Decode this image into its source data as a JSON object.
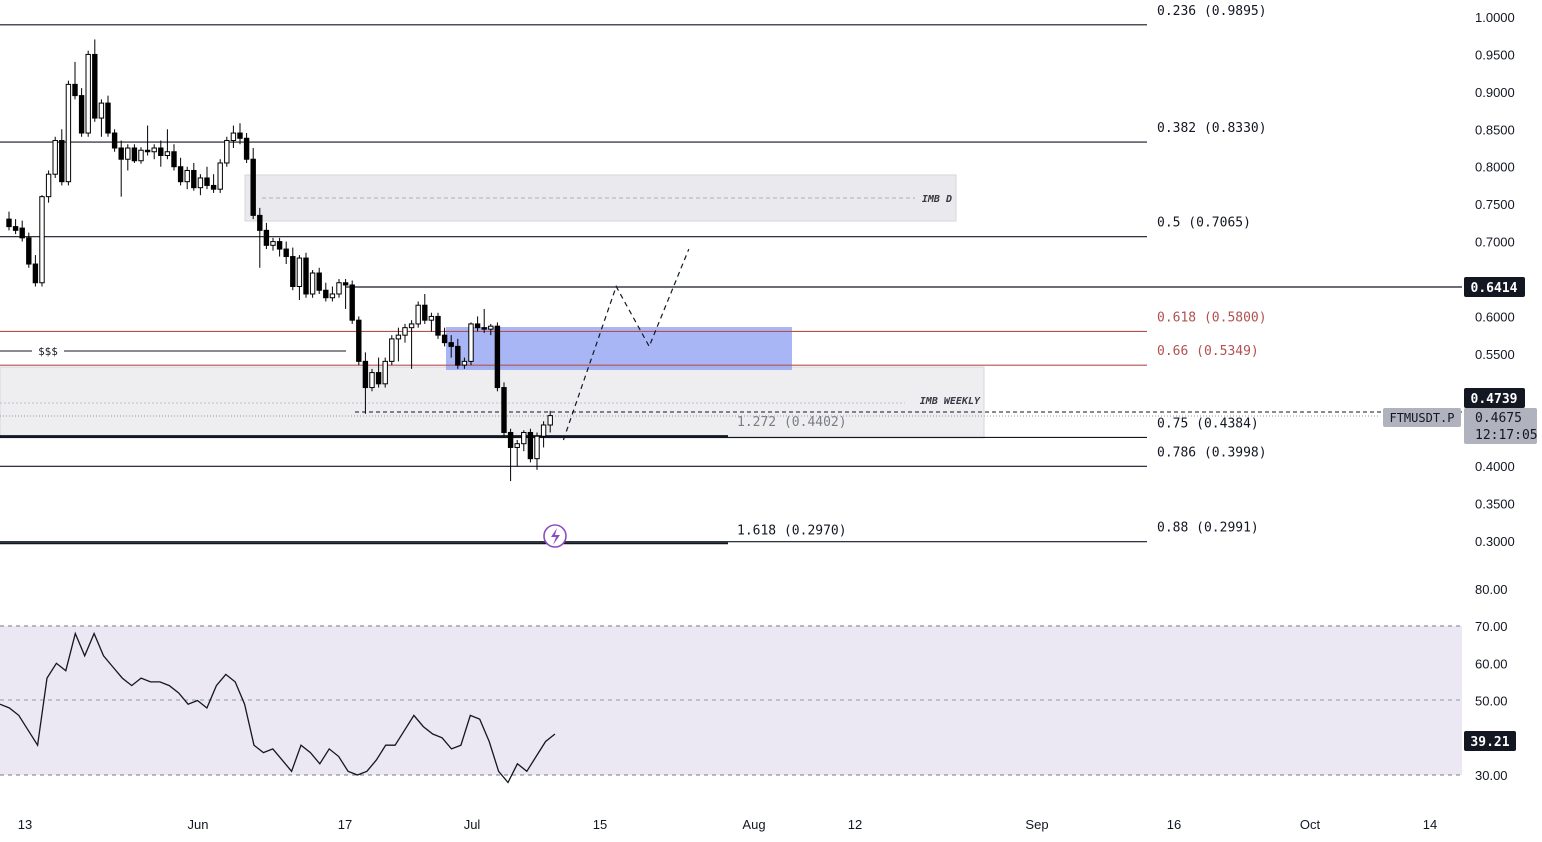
{
  "symbol": "FTMUSDT.P",
  "colors": {
    "bull_fill": "#ffffff",
    "bear_fill": "#000000",
    "candle_stroke": "#000000",
    "fib_black": "#131722",
    "fib_red": "#b2504f",
    "imbalance_gray": "#e6e6ec",
    "blue_zone": "#8c9ef2",
    "rsi_band": "#ebe7f3",
    "rsi_line": "#131722",
    "label_bg": "#131722",
    "label_text": "#ffffff",
    "symbol_tag_bg": "#b0b3bd",
    "marker": "#8a4fbf"
  },
  "price_axis": {
    "labels": [
      "1.0000",
      "0.9500",
      "0.9000",
      "0.8500",
      "0.8000",
      "0.7500",
      "0.7000",
      "0.6000",
      "0.5500",
      "0.4000",
      "0.3500",
      "0.3000"
    ]
  },
  "rsi_axis": {
    "labels": [
      "80.00",
      "70.00",
      "60.00",
      "50.00",
      "30.00"
    ]
  },
  "time_axis": {
    "labels": [
      "13",
      "Jun",
      "17",
      "Jul",
      "15",
      "Aug",
      "12",
      "Sep",
      "16",
      "Oct",
      "14"
    ]
  },
  "badges": {
    "level_price": "0.6414",
    "high_price": "0.4739",
    "last_price": "0.4675",
    "countdown": "12:17:05",
    "rsi_value": "39.21"
  },
  "fib_levels": [
    {
      "label": "0.236 (0.9895)",
      "price": 0.9895,
      "color": "black"
    },
    {
      "label": "0.382 (0.8330)",
      "price": 0.833,
      "color": "black"
    },
    {
      "label": "0.5 (0.7065)",
      "price": 0.7065,
      "color": "black"
    },
    {
      "label": "0.618 (0.5800)",
      "price": 0.58,
      "color": "red"
    },
    {
      "label": "0.66 (0.5349)",
      "price": 0.5349,
      "color": "red"
    },
    {
      "label": "0.75 (0.4384)",
      "price": 0.4384,
      "color": "black"
    },
    {
      "label": "0.786 (0.3998)",
      "price": 0.3998,
      "color": "black"
    },
    {
      "label": "0.88 (0.2991)",
      "price": 0.2991,
      "color": "black"
    }
  ],
  "extension_levels": [
    {
      "label": "1.272 (0.4402)",
      "price": 0.4402
    },
    {
      "label": "1.618 (0.2970)",
      "price": 0.297
    }
  ],
  "zones": {
    "imb_daily": "IMB D",
    "imb_weekly": "IMB WEEKLY",
    "liquidity": "$$$"
  },
  "chart_data": {
    "type": "candlestick",
    "symbol": "FTMUSDT.P",
    "price_range": [
      0.3,
      1.0
    ],
    "rsi_range": [
      30,
      70
    ],
    "candles": [
      {
        "o": 0.73,
        "h": 0.74,
        "l": 0.715,
        "c": 0.72
      },
      {
        "o": 0.72,
        "h": 0.73,
        "l": 0.71,
        "c": 0.715
      },
      {
        "o": 0.718,
        "h": 0.728,
        "l": 0.7,
        "c": 0.705
      },
      {
        "o": 0.705,
        "h": 0.712,
        "l": 0.665,
        "c": 0.67
      },
      {
        "o": 0.67,
        "h": 0.682,
        "l": 0.64,
        "c": 0.645
      },
      {
        "o": 0.645,
        "h": 0.762,
        "l": 0.64,
        "c": 0.76
      },
      {
        "o": 0.76,
        "h": 0.795,
        "l": 0.752,
        "c": 0.79
      },
      {
        "o": 0.79,
        "h": 0.84,
        "l": 0.785,
        "c": 0.835
      },
      {
        "o": 0.835,
        "h": 0.85,
        "l": 0.775,
        "c": 0.78
      },
      {
        "o": 0.78,
        "h": 0.915,
        "l": 0.775,
        "c": 0.91
      },
      {
        "o": 0.91,
        "h": 0.94,
        "l": 0.89,
        "c": 0.895
      },
      {
        "o": 0.895,
        "h": 0.905,
        "l": 0.84,
        "c": 0.845
      },
      {
        "o": 0.845,
        "h": 0.955,
        "l": 0.84,
        "c": 0.95
      },
      {
        "o": 0.95,
        "h": 0.97,
        "l": 0.86,
        "c": 0.865
      },
      {
        "o": 0.865,
        "h": 0.89,
        "l": 0.84,
        "c": 0.885
      },
      {
        "o": 0.885,
        "h": 0.895,
        "l": 0.84,
        "c": 0.845
      },
      {
        "o": 0.845,
        "h": 0.85,
        "l": 0.82,
        "c": 0.825
      },
      {
        "o": 0.825,
        "h": 0.835,
        "l": 0.76,
        "c": 0.81
      },
      {
        "o": 0.81,
        "h": 0.83,
        "l": 0.795,
        "c": 0.825
      },
      {
        "o": 0.825,
        "h": 0.83,
        "l": 0.805,
        "c": 0.808
      },
      {
        "o": 0.808,
        "h": 0.826,
        "l": 0.804,
        "c": 0.822
      },
      {
        "o": 0.822,
        "h": 0.855,
        "l": 0.815,
        "c": 0.82
      },
      {
        "o": 0.82,
        "h": 0.83,
        "l": 0.81,
        "c": 0.825
      },
      {
        "o": 0.825,
        "h": 0.835,
        "l": 0.8,
        "c": 0.815
      },
      {
        "o": 0.815,
        "h": 0.85,
        "l": 0.81,
        "c": 0.82
      },
      {
        "o": 0.82,
        "h": 0.83,
        "l": 0.795,
        "c": 0.8
      },
      {
        "o": 0.8,
        "h": 0.812,
        "l": 0.775,
        "c": 0.78
      },
      {
        "o": 0.78,
        "h": 0.8,
        "l": 0.77,
        "c": 0.795
      },
      {
        "o": 0.795,
        "h": 0.805,
        "l": 0.768,
        "c": 0.772
      },
      {
        "o": 0.772,
        "h": 0.79,
        "l": 0.762,
        "c": 0.785
      },
      {
        "o": 0.785,
        "h": 0.8,
        "l": 0.77,
        "c": 0.775
      },
      {
        "o": 0.775,
        "h": 0.79,
        "l": 0.765,
        "c": 0.77
      },
      {
        "o": 0.77,
        "h": 0.81,
        "l": 0.765,
        "c": 0.805
      },
      {
        "o": 0.805,
        "h": 0.84,
        "l": 0.8,
        "c": 0.835
      },
      {
        "o": 0.835,
        "h": 0.855,
        "l": 0.825,
        "c": 0.845
      },
      {
        "o": 0.845,
        "h": 0.858,
        "l": 0.83,
        "c": 0.838
      },
      {
        "o": 0.838,
        "h": 0.845,
        "l": 0.805,
        "c": 0.81
      },
      {
        "o": 0.81,
        "h": 0.825,
        "l": 0.73,
        "c": 0.735
      },
      {
        "o": 0.735,
        "h": 0.745,
        "l": 0.665,
        "c": 0.715
      },
      {
        "o": 0.715,
        "h": 0.725,
        "l": 0.69,
        "c": 0.695
      },
      {
        "o": 0.695,
        "h": 0.705,
        "l": 0.688,
        "c": 0.7
      },
      {
        "o": 0.7,
        "h": 0.705,
        "l": 0.68,
        "c": 0.69
      },
      {
        "o": 0.69,
        "h": 0.7,
        "l": 0.67,
        "c": 0.68
      },
      {
        "o": 0.68,
        "h": 0.692,
        "l": 0.635,
        "c": 0.64
      },
      {
        "o": 0.64,
        "h": 0.682,
        "l": 0.622,
        "c": 0.678
      },
      {
        "o": 0.678,
        "h": 0.685,
        "l": 0.625,
        "c": 0.63
      },
      {
        "o": 0.63,
        "h": 0.662,
        "l": 0.625,
        "c": 0.658
      },
      {
        "o": 0.658,
        "h": 0.665,
        "l": 0.63,
        "c": 0.635
      },
      {
        "o": 0.635,
        "h": 0.645,
        "l": 0.62,
        "c": 0.625
      },
      {
        "o": 0.625,
        "h": 0.64,
        "l": 0.62,
        "c": 0.63
      },
      {
        "o": 0.63,
        "h": 0.65,
        "l": 0.625,
        "c": 0.645
      },
      {
        "o": 0.645,
        "h": 0.65,
        "l": 0.61,
        "c": 0.642
      },
      {
        "o": 0.642,
        "h": 0.648,
        "l": 0.59,
        "c": 0.595
      },
      {
        "o": 0.595,
        "h": 0.6,
        "l": 0.535,
        "c": 0.54
      },
      {
        "o": 0.54,
        "h": 0.552,
        "l": 0.47,
        "c": 0.505
      },
      {
        "o": 0.505,
        "h": 0.53,
        "l": 0.5,
        "c": 0.525
      },
      {
        "o": 0.525,
        "h": 0.545,
        "l": 0.505,
        "c": 0.51
      },
      {
        "o": 0.51,
        "h": 0.545,
        "l": 0.505,
        "c": 0.54
      },
      {
        "o": 0.54,
        "h": 0.575,
        "l": 0.535,
        "c": 0.57
      },
      {
        "o": 0.57,
        "h": 0.585,
        "l": 0.54,
        "c": 0.575
      },
      {
        "o": 0.575,
        "h": 0.59,
        "l": 0.565,
        "c": 0.585
      },
      {
        "o": 0.585,
        "h": 0.595,
        "l": 0.53,
        "c": 0.59
      },
      {
        "o": 0.59,
        "h": 0.62,
        "l": 0.585,
        "c": 0.615
      },
      {
        "o": 0.615,
        "h": 0.63,
        "l": 0.59,
        "c": 0.595
      },
      {
        "o": 0.595,
        "h": 0.605,
        "l": 0.58,
        "c": 0.6
      },
      {
        "o": 0.6,
        "h": 0.605,
        "l": 0.57,
        "c": 0.575
      },
      {
        "o": 0.575,
        "h": 0.585,
        "l": 0.56,
        "c": 0.565
      },
      {
        "o": 0.565,
        "h": 0.575,
        "l": 0.545,
        "c": 0.56
      },
      {
        "o": 0.56,
        "h": 0.57,
        "l": 0.53,
        "c": 0.535
      },
      {
        "o": 0.535,
        "h": 0.545,
        "l": 0.53,
        "c": 0.54
      },
      {
        "o": 0.54,
        "h": 0.592,
        "l": 0.535,
        "c": 0.59
      },
      {
        "o": 0.59,
        "h": 0.6,
        "l": 0.58,
        "c": 0.585
      },
      {
        "o": 0.585,
        "h": 0.61,
        "l": 0.578,
        "c": 0.583
      },
      {
        "o": 0.583,
        "h": 0.59,
        "l": 0.575,
        "c": 0.587
      },
      {
        "o": 0.587,
        "h": 0.592,
        "l": 0.5,
        "c": 0.505
      },
      {
        "o": 0.505,
        "h": 0.512,
        "l": 0.44,
        "c": 0.445
      },
      {
        "o": 0.445,
        "h": 0.45,
        "l": 0.38,
        "c": 0.425
      },
      {
        "o": 0.425,
        "h": 0.435,
        "l": 0.4,
        "c": 0.43
      },
      {
        "o": 0.43,
        "h": 0.448,
        "l": 0.42,
        "c": 0.445
      },
      {
        "o": 0.445,
        "h": 0.45,
        "l": 0.405,
        "c": 0.41
      },
      {
        "o": 0.41,
        "h": 0.445,
        "l": 0.395,
        "c": 0.44
      },
      {
        "o": 0.44,
        "h": 0.46,
        "l": 0.425,
        "c": 0.455
      },
      {
        "o": 0.455,
        "h": 0.4739,
        "l": 0.445,
        "c": 0.4675
      }
    ],
    "rsi": [
      49,
      48,
      46,
      42,
      38,
      56,
      60,
      58,
      68,
      62,
      68,
      62,
      59,
      56,
      54,
      56,
      55,
      55,
      54,
      52,
      49,
      50,
      48,
      54,
      57,
      55,
      49,
      38,
      36,
      37,
      34,
      31,
      38,
      36,
      33,
      37,
      35,
      31,
      30,
      31,
      34,
      38,
      38,
      42,
      46,
      43,
      41,
      40,
      37,
      38,
      46,
      45,
      39,
      31,
      28,
      33,
      31,
      35,
      39,
      41
    ]
  },
  "projection": {
    "start_index": 84,
    "points": [
      {
        "bars_ahead": 0,
        "price": 0.435
      },
      {
        "bars_ahead": 8,
        "price": 0.64
      },
      {
        "bars_ahead": 13,
        "price": 0.56
      },
      {
        "bars_ahead": 19,
        "price": 0.69
      }
    ]
  }
}
